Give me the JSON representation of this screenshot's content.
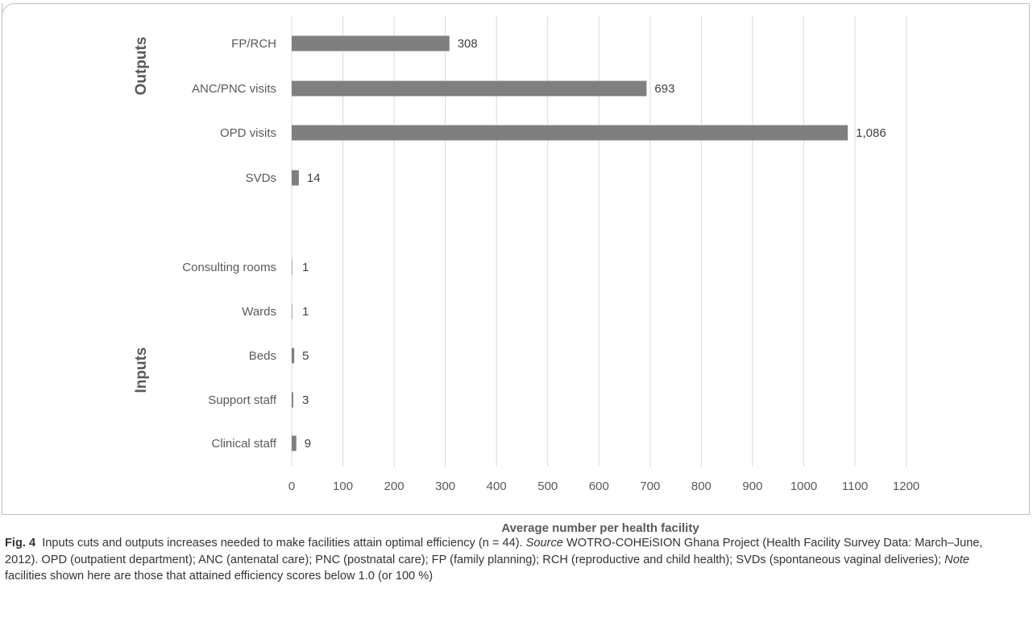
{
  "chart_data": {
    "type": "bar",
    "orientation": "horizontal",
    "groups": [
      {
        "label": "Outputs",
        "categories": [
          "FP/RCH",
          "ANC/PNC visits",
          "OPD visits",
          "SVDs"
        ]
      },
      {
        "label": "Inputs",
        "categories": [
          "Consulting rooms",
          "Wards",
          "Beds",
          "Support staff",
          "Clinical staff"
        ]
      }
    ],
    "categories": [
      "FP/RCH",
      "ANC/PNC visits",
      "OPD visits",
      "SVDs",
      "Consulting rooms",
      "Wards",
      "Beds",
      "Support staff",
      "Clinical staff"
    ],
    "values": [
      308,
      693,
      1086,
      14,
      1,
      1,
      5,
      3,
      9
    ],
    "data_labels": [
      "308",
      "693",
      "1,086",
      "14",
      "1",
      "1",
      "5",
      "3",
      "9"
    ],
    "x_ticks": [
      "0",
      "100",
      "200",
      "300",
      "400",
      "500",
      "600",
      "700",
      "800",
      "900",
      "1000",
      "1100",
      "1200"
    ],
    "xlim": [
      0,
      1200
    ],
    "xlabel": "Average number per health facility",
    "grid": "vertical",
    "colors": {
      "bar": "#7f7f7f",
      "grid": "#d9d9d9",
      "label": "#595959"
    }
  },
  "caption": {
    "fig_label": "Fig. 4",
    "text_1": "Inputs cuts and outputs increases needed to make facilities attain optimal efficiency (n = 44). ",
    "source_word": "Source",
    "text_2": " WOTRO-COHEiSION Ghana Project (Health Facility Survey Data: March–June, 2012). OPD (outpatient department); ANC (antenatal care); PNC (postnatal care); FP (family planning); RCH (reproductive and child health); SVDs (spontaneous vaginal deliveries); ",
    "note_word": "Note",
    "text_3": " facilities shown here are those that attained efficiency scores below 1.0 (or 100 %)"
  }
}
